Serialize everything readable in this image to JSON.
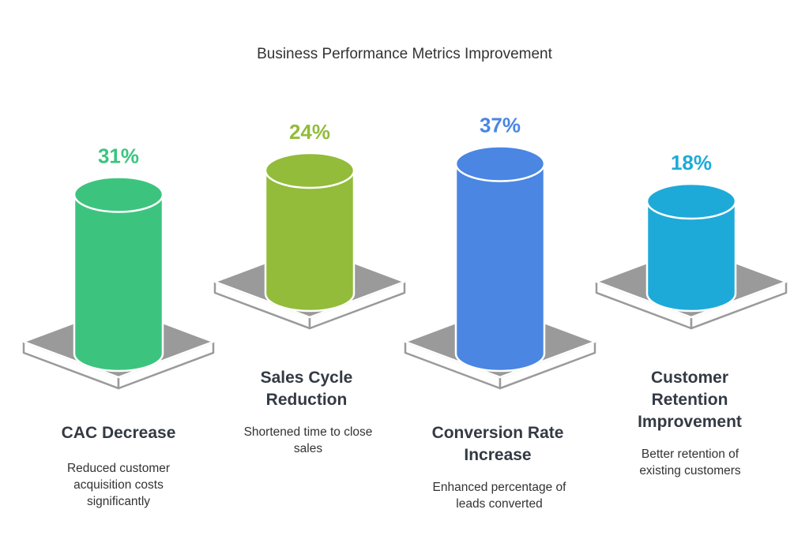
{
  "chart_data": {
    "type": "bar",
    "title": "Business Performance Metrics Improvement",
    "categories": [
      "CAC Decrease",
      "Sales Cycle Reduction",
      "Conversion Rate Increase",
      "Customer Retention Improvement"
    ],
    "values": [
      31,
      24,
      37,
      18
    ],
    "value_labels": [
      "31%",
      "24%",
      "37%",
      "18%"
    ],
    "descriptions": [
      "Reduced customer acquisition costs significantly",
      "Shortened time to close sales",
      "Enhanced percentage of leads converted",
      "Better retention of existing customers"
    ],
    "colors": [
      "#3cc47f",
      "#92bc3a",
      "#4a86e2",
      "#1eaad8"
    ],
    "base_color": "#9a9a9a",
    "grid": false
  }
}
